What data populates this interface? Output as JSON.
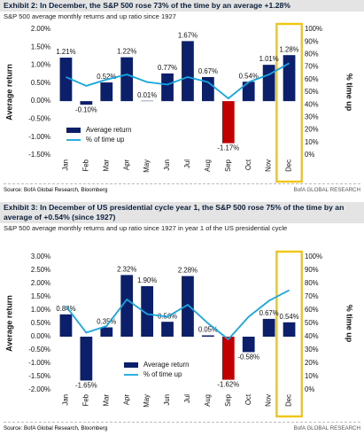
{
  "chart_data": [
    {
      "type": "bar",
      "title": "Exhibit 2: In December, the S&P 500 rose 73% of the time by an average +1.28%",
      "subtitle": "S&P 500 average monthly returns and up ratio since 1927",
      "categories": [
        "Jan",
        "Feb",
        "Mar",
        "Apr",
        "May",
        "Jun",
        "Jul",
        "Aug",
        "Sep",
        "Oct",
        "Nov",
        "Dec"
      ],
      "series": [
        {
          "name": "Average return",
          "type": "bar",
          "color": "#0b1f6b",
          "point_colors": [
            "#0b1f6b",
            "#0b1f6b",
            "#0b1f6b",
            "#0b1f6b",
            "#0b1f6b",
            "#0b1f6b",
            "#0b1f6b",
            "#0b1f6b",
            "#c00000",
            "#0b1f6b",
            "#0b1f6b",
            "#0b1f6b"
          ],
          "values": [
            1.21,
            -0.1,
            0.52,
            1.22,
            0.01,
            0.77,
            1.67,
            0.67,
            -1.17,
            0.54,
            1.01,
            1.28
          ],
          "value_labels": [
            "1.21%",
            "-0.10%",
            "0.52%",
            "1.22%",
            "0.01%",
            "0.77%",
            "1.67%",
            "0.67%",
            "-1.17%",
            "0.54%",
            "1.01%",
            "1.28%"
          ]
        },
        {
          "name": "% of time up",
          "type": "line",
          "axis": "y2",
          "color": "#14a6e0",
          "values": [
            62,
            55,
            60,
            64,
            58,
            56,
            62,
            58,
            45,
            58,
            64,
            73
          ]
        }
      ],
      "ylabel": "Average return",
      "y2label": "% time up",
      "ylim": [
        -1.5,
        2.0
      ],
      "yticks": [
        {
          "value": -1.5,
          "label": "-1.50%"
        },
        {
          "value": -1.0,
          "label": "-1.00%"
        },
        {
          "value": -0.5,
          "label": "-0.50%"
        },
        {
          "value": 0,
          "label": "0.00%"
        },
        {
          "value": 0.5,
          "label": "0.50%"
        },
        {
          "value": 1.0,
          "label": "1.00%"
        },
        {
          "value": 1.5,
          "label": "1.50%"
        },
        {
          "value": 2.0,
          "label": "2.00%"
        }
      ],
      "y2lim": [
        0,
        100
      ],
      "y2ticks": [
        {
          "value": 0,
          "label": "0%"
        },
        {
          "value": 10,
          "label": "10%"
        },
        {
          "value": 20,
          "label": "20%"
        },
        {
          "value": 30,
          "label": "30%"
        },
        {
          "value": 40,
          "label": "40%"
        },
        {
          "value": 50,
          "label": "50%"
        },
        {
          "value": 60,
          "label": "60%"
        },
        {
          "value": 70,
          "label": "70%"
        },
        {
          "value": 80,
          "label": "80%"
        },
        {
          "value": 90,
          "label": "90%"
        },
        {
          "value": 100,
          "label": "100%"
        }
      ],
      "legend": "lower left",
      "highlight_index": 11,
      "highlight_color": "#f2c511",
      "source": "Source: BofA Global Research, Bloomberg",
      "credit": "BofA GLOBAL RESEARCH"
    },
    {
      "type": "bar",
      "title": "Exhibit 3: In December of US presidential cycle year 1, the S&P 500 rose 75% of the time by an average of +0.54% (since 1927)",
      "subtitle": "S&P 500 average monthly returns and up ratio since 1927 in year 1 of the US presidential cycle",
      "categories": [
        "Jan",
        "Feb",
        "Mar",
        "Apr",
        "May",
        "Jun",
        "Jul",
        "Aug",
        "Sep",
        "Oct",
        "Nov",
        "Dec"
      ],
      "series": [
        {
          "name": "Average return",
          "type": "bar",
          "color": "#0b1f6b",
          "point_colors": [
            "#0b1f6b",
            "#0b1f6b",
            "#0b1f6b",
            "#0b1f6b",
            "#0b1f6b",
            "#0b1f6b",
            "#0b1f6b",
            "#0b1f6b",
            "#c00000",
            "#0b1f6b",
            "#0b1f6b",
            "#0b1f6b"
          ],
          "values": [
            0.84,
            -1.65,
            0.35,
            2.32,
            1.9,
            0.56,
            2.28,
            0.05,
            -1.62,
            -0.58,
            0.67,
            0.54
          ],
          "value_labels": [
            "0.84%",
            "-1.65%",
            "0.35%",
            "2.32%",
            "1.90%",
            "0.56%",
            "2.28%",
            "0.05%",
            "-1.62%",
            "-0.58%",
            "0.67%",
            "0.54%"
          ]
        },
        {
          "name": "% of time up",
          "type": "line",
          "axis": "y2",
          "color": "#14a6e0",
          "values": [
            63,
            43,
            48,
            68,
            57,
            55,
            64,
            50,
            38,
            55,
            67,
            75
          ]
        }
      ],
      "ylabel": "Average return",
      "y2label": "% time up",
      "ylim": [
        -2.0,
        3.0
      ],
      "yticks": [
        {
          "value": -2.0,
          "label": "-2.00%"
        },
        {
          "value": -1.5,
          "label": "-1.50%"
        },
        {
          "value": -1.0,
          "label": "-1.00%"
        },
        {
          "value": -0.5,
          "label": "-0.50%"
        },
        {
          "value": 0,
          "label": "0.00%"
        },
        {
          "value": 0.5,
          "label": "0.50%"
        },
        {
          "value": 1.0,
          "label": "1.00%"
        },
        {
          "value": 1.5,
          "label": "1.50%"
        },
        {
          "value": 2.0,
          "label": "2.00%"
        },
        {
          "value": 2.5,
          "label": "2.50%"
        },
        {
          "value": 3.0,
          "label": "3.00%"
        }
      ],
      "y2lim": [
        0,
        100
      ],
      "y2ticks": [
        {
          "value": 0,
          "label": "0%"
        },
        {
          "value": 10,
          "label": "10%"
        },
        {
          "value": 20,
          "label": "20%"
        },
        {
          "value": 30,
          "label": "30%"
        },
        {
          "value": 40,
          "label": "40%"
        },
        {
          "value": 50,
          "label": "50%"
        },
        {
          "value": 60,
          "label": "60%"
        },
        {
          "value": 70,
          "label": "70%"
        },
        {
          "value": 80,
          "label": "80%"
        },
        {
          "value": 90,
          "label": "90%"
        },
        {
          "value": 100,
          "label": "100%"
        }
      ],
      "legend": "lower center",
      "highlight_index": 11,
      "highlight_color": "#f2c511",
      "source": "Source: BofA Global Research, Bloomberg",
      "credit": "BofA GLOBAL RESEARCH"
    }
  ]
}
